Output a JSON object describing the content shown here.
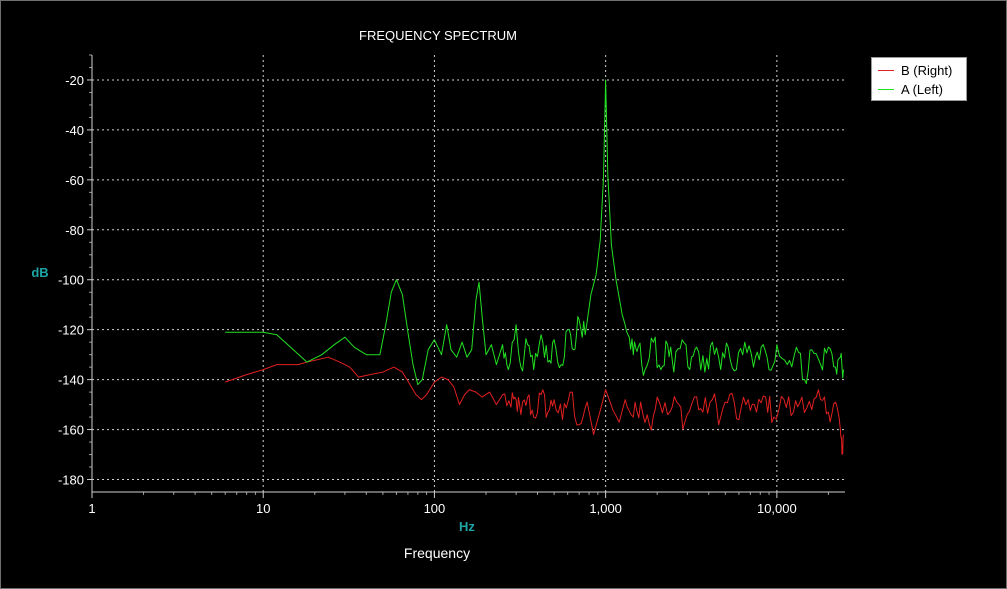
{
  "chart_data": {
    "type": "line",
    "title": "FREQUENCY SPECTRUM",
    "xlabel": "Frequency",
    "x_unit_label": "Hz",
    "ylabel": "dB",
    "x_scale": "log",
    "xlim": [
      1,
      25000
    ],
    "ylim": [
      -185,
      -10
    ],
    "x_ticks": [
      1,
      10,
      100,
      1000,
      10000
    ],
    "x_tick_labels": [
      "1",
      "10",
      "100",
      "1,000",
      "10,000"
    ],
    "y_ticks": [
      -20,
      -40,
      -60,
      -80,
      -100,
      -120,
      -140,
      -160,
      -180
    ],
    "y_tick_labels": [
      "-20",
      "-40",
      "-60",
      "-80",
      "-100",
      "-120",
      "-140",
      "-160",
      "-180"
    ],
    "grid": true,
    "legend_position": "top-right",
    "series": [
      {
        "name": "B (Right)",
        "color": "#e02020",
        "points": [
          [
            6,
            -141
          ],
          [
            8,
            -138
          ],
          [
            10,
            -136
          ],
          [
            12,
            -134
          ],
          [
            16,
            -134
          ],
          [
            18,
            -133
          ],
          [
            24,
            -131
          ],
          [
            28,
            -133
          ],
          [
            32,
            -135
          ],
          [
            36,
            -139
          ],
          [
            42,
            -138
          ],
          [
            50,
            -137
          ],
          [
            58,
            -135
          ],
          [
            65,
            -137
          ],
          [
            72,
            -142
          ],
          [
            78,
            -146
          ],
          [
            84,
            -148
          ],
          [
            90,
            -146
          ],
          [
            100,
            -141
          ],
          [
            110,
            -139
          ],
          [
            120,
            -140
          ],
          [
            130,
            -143
          ],
          [
            140,
            -150
          ],
          [
            150,
            -146
          ],
          [
            160,
            -144
          ],
          [
            175,
            -145
          ],
          [
            190,
            -147
          ],
          [
            210,
            -145
          ],
          [
            230,
            -150
          ],
          [
            250,
            -146
          ],
          [
            280,
            -151
          ],
          [
            300,
            -148
          ],
          [
            320,
            -154
          ],
          [
            350,
            -147
          ],
          [
            380,
            -155
          ],
          [
            420,
            -146
          ],
          [
            460,
            -153
          ],
          [
            500,
            -148
          ],
          [
            560,
            -156
          ],
          [
            620,
            -145
          ],
          [
            700,
            -158
          ],
          [
            780,
            -149
          ],
          [
            850,
            -162
          ],
          [
            950,
            -150
          ],
          [
            1000,
            -144
          ],
          [
            1100,
            -152
          ],
          [
            1200,
            -157
          ],
          [
            1300,
            -148
          ],
          [
            1450,
            -155
          ],
          [
            1600,
            -149
          ],
          [
            1800,
            -158
          ],
          [
            2000,
            -147
          ],
          [
            2300,
            -154
          ],
          [
            2600,
            -149
          ],
          [
            2900,
            -157
          ],
          [
            3300,
            -147
          ],
          [
            3700,
            -153
          ],
          [
            4200,
            -148
          ],
          [
            4700,
            -155
          ],
          [
            5300,
            -146
          ],
          [
            6000,
            -156
          ],
          [
            6800,
            -148
          ],
          [
            7600,
            -153
          ],
          [
            8600,
            -147
          ],
          [
            9600,
            -155
          ],
          [
            11000,
            -148
          ],
          [
            12500,
            -153
          ],
          [
            14000,
            -147
          ],
          [
            16000,
            -152
          ],
          [
            18000,
            -148
          ],
          [
            20000,
            -153
          ],
          [
            22000,
            -149
          ],
          [
            23500,
            -160
          ],
          [
            24000,
            -170
          ],
          [
            24500,
            -162
          ]
        ]
      },
      {
        "name": "A (Left)",
        "color": "#22e022",
        "points": [
          [
            6,
            -121
          ],
          [
            8,
            -121
          ],
          [
            10,
            -121
          ],
          [
            12,
            -122
          ],
          [
            15,
            -128
          ],
          [
            18,
            -133
          ],
          [
            22,
            -130
          ],
          [
            26,
            -126
          ],
          [
            30,
            -123
          ],
          [
            34,
            -127
          ],
          [
            40,
            -130
          ],
          [
            48,
            -130
          ],
          [
            52,
            -118
          ],
          [
            56,
            -105
          ],
          [
            60,
            -100
          ],
          [
            65,
            -106
          ],
          [
            70,
            -121
          ],
          [
            75,
            -134
          ],
          [
            80,
            -142
          ],
          [
            85,
            -140
          ],
          [
            92,
            -128
          ],
          [
            100,
            -124
          ],
          [
            110,
            -130
          ],
          [
            118,
            -118
          ],
          [
            125,
            -128
          ],
          [
            135,
            -131
          ],
          [
            145,
            -125
          ],
          [
            155,
            -131
          ],
          [
            165,
            -128
          ],
          [
            175,
            -108
          ],
          [
            182,
            -101
          ],
          [
            190,
            -115
          ],
          [
            200,
            -130
          ],
          [
            215,
            -126
          ],
          [
            230,
            -134
          ],
          [
            250,
            -126
          ],
          [
            270,
            -136
          ],
          [
            300,
            -118
          ],
          [
            320,
            -135
          ],
          [
            350,
            -126
          ],
          [
            380,
            -136
          ],
          [
            420,
            -122
          ],
          [
            460,
            -133
          ],
          [
            500,
            -124
          ],
          [
            550,
            -134
          ],
          [
            600,
            -120
          ],
          [
            650,
            -128
          ],
          [
            700,
            -116
          ],
          [
            760,
            -122
          ],
          [
            820,
            -106
          ],
          [
            880,
            -98
          ],
          [
            930,
            -84
          ],
          [
            970,
            -60
          ],
          [
            1000,
            -20
          ],
          [
            1030,
            -58
          ],
          [
            1080,
            -86
          ],
          [
            1150,
            -100
          ],
          [
            1250,
            -114
          ],
          [
            1350,
            -122
          ],
          [
            1450,
            -130
          ],
          [
            1550,
            -127
          ],
          [
            1700,
            -136
          ],
          [
            1900,
            -125
          ],
          [
            2100,
            -136
          ],
          [
            2300,
            -126
          ],
          [
            2500,
            -137
          ],
          [
            2800,
            -124
          ],
          [
            3100,
            -136
          ],
          [
            3400,
            -127
          ],
          [
            3800,
            -137
          ],
          [
            4200,
            -125
          ],
          [
            4700,
            -136
          ],
          [
            5200,
            -127
          ],
          [
            5800,
            -136
          ],
          [
            6500,
            -125
          ],
          [
            7300,
            -135
          ],
          [
            8100,
            -127
          ],
          [
            9000,
            -136
          ],
          [
            10000,
            -126
          ],
          [
            11500,
            -134
          ],
          [
            13000,
            -127
          ],
          [
            14500,
            -140
          ],
          [
            16000,
            -128
          ],
          [
            18000,
            -134
          ],
          [
            20000,
            -127
          ],
          [
            22000,
            -135
          ],
          [
            23500,
            -131
          ],
          [
            24500,
            -136
          ]
        ]
      }
    ]
  }
}
